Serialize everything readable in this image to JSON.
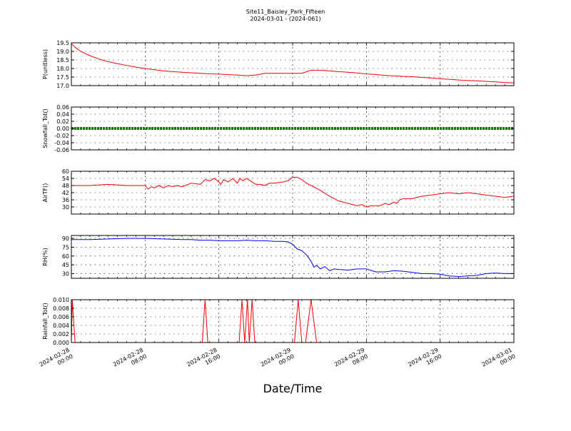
{
  "title": "Site11_Baisley_Park_Fifteen",
  "subtitle": "2024-03-01 - (2024-061)",
  "xlabel": "Date/Time",
  "x_ticks": [
    "2024-02-28\n00:00",
    "2024-02-28\n08:00",
    "2024-02-28\n16:00",
    "2024-02-29\n00:00",
    "2024-02-29\n08:00",
    "2024-02-29\n16:00",
    "2024-03-01\n00:00"
  ],
  "x_range_hours": [
    0,
    48
  ],
  "colors": {
    "p": "#ff0000",
    "snowfall": "#008000",
    "airtf": "#ff0000",
    "rh": "#0000ff",
    "rainfall": "#ff0000"
  },
  "chart_data": [
    {
      "type": "line",
      "ylabel": "P(unitless)",
      "ylim": [
        17.0,
        19.5
      ],
      "yticks": [
        "17.0",
        "17.5",
        "18.0",
        "18.5",
        "19.0",
        "19.5"
      ],
      "grid": true,
      "x": [
        0,
        0.5,
        1,
        2,
        3,
        4,
        5,
        6,
        7,
        8,
        9,
        10,
        11,
        12,
        13,
        14,
        15,
        16,
        17,
        18,
        19,
        20,
        21,
        22,
        23,
        24,
        25,
        26,
        27,
        28,
        29,
        30,
        31,
        32,
        33,
        34,
        35,
        36,
        37,
        38,
        39,
        40,
        41,
        42,
        43,
        44,
        45,
        46,
        47,
        48
      ],
      "values": [
        19.45,
        19.2,
        19.0,
        18.75,
        18.55,
        18.4,
        18.28,
        18.18,
        18.08,
        18.0,
        17.93,
        17.86,
        17.82,
        17.78,
        17.75,
        17.72,
        17.69,
        17.67,
        17.64,
        17.62,
        17.58,
        17.62,
        17.72,
        17.72,
        17.72,
        17.72,
        17.72,
        17.9,
        17.9,
        17.86,
        17.82,
        17.78,
        17.74,
        17.68,
        17.65,
        17.6,
        17.57,
        17.54,
        17.52,
        17.48,
        17.45,
        17.4,
        17.37,
        17.33,
        17.3,
        17.28,
        17.25,
        17.22,
        17.18,
        17.16
      ]
    },
    {
      "type": "line",
      "ylabel": "Snowfall_Tot()",
      "ylim": [
        -0.06,
        0.06
      ],
      "yticks": [
        "-0.06",
        "-0.04",
        "-0.02",
        "0.00",
        "0.02",
        "0.04",
        "0.06"
      ],
      "grid": true,
      "x": [
        0,
        48
      ],
      "values": [
        0,
        0
      ]
    },
    {
      "type": "line",
      "ylabel": "AirTF()",
      "ylim": [
        24,
        60
      ],
      "yticks": [
        "30",
        "36",
        "42",
        "48",
        "54",
        "60"
      ],
      "grid": true,
      "x": [
        0,
        2,
        4,
        6,
        8,
        8.3,
        8.7,
        9,
        9.5,
        10,
        10.5,
        11,
        11.5,
        12,
        13,
        14,
        14.5,
        15,
        15.5,
        16,
        16.2,
        16.5,
        17,
        17.5,
        18,
        18.3,
        18.6,
        19,
        19.4,
        19.8,
        20,
        20.5,
        21,
        21.5,
        22,
        23,
        23.5,
        24,
        24.5,
        25,
        25.5,
        26,
        27,
        28,
        29,
        30,
        31,
        31.5,
        32,
        32.5,
        33,
        33.5,
        34,
        34.5,
        35,
        35.3,
        35.6,
        36,
        37,
        37.5,
        38,
        39,
        40,
        41,
        42,
        43,
        44,
        45,
        46,
        47,
        48
      ],
      "values": [
        48,
        48,
        49,
        48,
        48,
        45,
        47,
        46,
        48,
        46,
        48,
        47,
        48,
        47,
        50,
        49,
        53,
        52,
        54,
        51,
        49,
        53,
        51,
        54,
        50,
        54,
        52,
        54,
        52,
        50,
        49,
        49,
        48,
        50,
        50,
        51,
        52,
        55,
        55,
        53,
        50,
        48,
        44,
        39,
        35,
        33,
        31,
        32,
        30,
        31,
        31,
        31,
        33,
        32,
        34,
        33,
        36,
        37,
        37,
        38,
        39,
        40,
        41,
        42,
        41,
        42,
        41,
        40,
        39,
        38,
        39
      ]
    },
    {
      "type": "line",
      "ylabel": "RH(%)",
      "ylim": [
        22,
        95
      ],
      "yticks": [
        "30",
        "45",
        "60",
        "75",
        "90"
      ],
      "grid": true,
      "x": [
        0,
        2,
        4,
        6,
        8,
        10,
        12,
        13,
        14,
        15,
        16,
        17,
        18,
        19,
        20,
        21,
        22,
        23,
        23.5,
        24,
        24.5,
        25,
        25.5,
        26,
        26.3,
        26.6,
        27,
        27.5,
        28,
        28.5,
        29,
        30,
        31,
        32,
        33,
        34,
        35,
        36,
        37,
        38,
        39,
        40,
        41,
        42,
        43,
        44,
        45,
        46,
        47,
        48
      ],
      "values": [
        88,
        88,
        89,
        90,
        90,
        89,
        88,
        88,
        87,
        87,
        86,
        86,
        86,
        87,
        86,
        86,
        85,
        85,
        84,
        80,
        72,
        69,
        62,
        51,
        41,
        44,
        38,
        42,
        35,
        38,
        37,
        36,
        38,
        38,
        33,
        33,
        35,
        34,
        32,
        30,
        30,
        29,
        26,
        25,
        26,
        27,
        30,
        31,
        30,
        30
      ]
    },
    {
      "type": "line",
      "ylabel": "Rainfall_Tot()",
      "ylim": [
        0.0,
        0.01
      ],
      "yticks": [
        "0.000",
        "0.002",
        "0.004",
        "0.006",
        "0.008",
        "0.010"
      ],
      "grid": true,
      "x": [
        0,
        0.1,
        0.4,
        14.2,
        14.5,
        14.8,
        18.2,
        18.5,
        18.8,
        19.1,
        19.3,
        19.6,
        19.9,
        20.2,
        24.2,
        24.6,
        25.0,
        25.4,
        26.0,
        26.6,
        48
      ],
      "values": [
        0,
        0.01,
        0,
        0,
        0.01,
        0,
        0,
        0.01,
        0,
        0.01,
        0,
        0.01,
        0,
        0,
        0,
        0.01,
        0,
        0,
        0.01,
        0,
        0
      ]
    }
  ]
}
